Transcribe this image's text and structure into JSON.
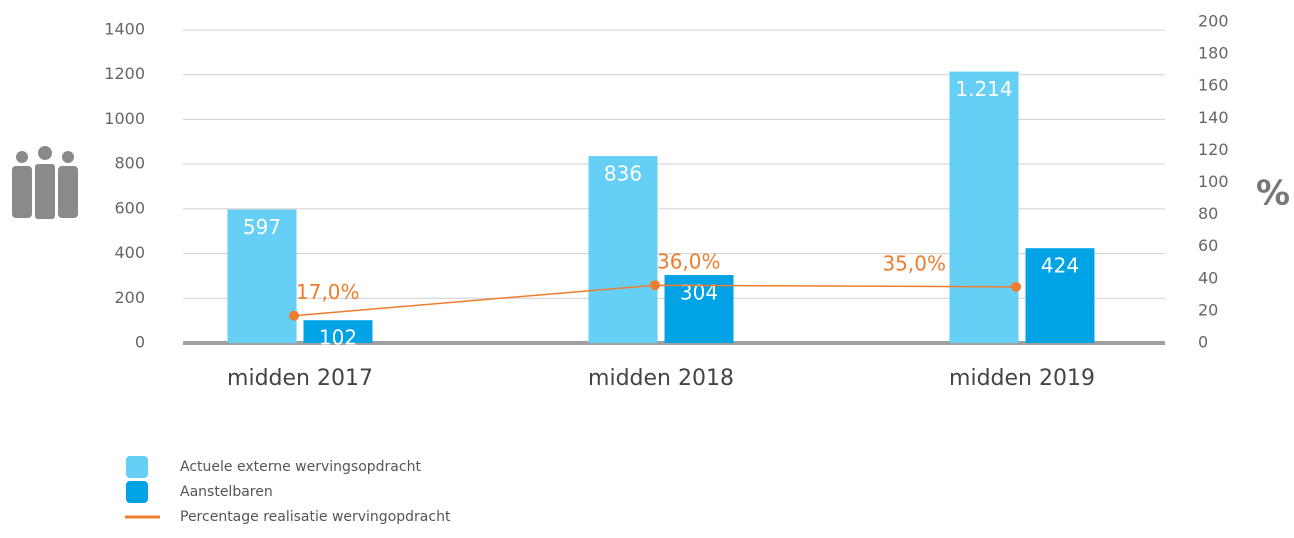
{
  "chart_data": {
    "type": "bar",
    "categories": [
      "midden 2017",
      "midden 2018",
      "midden 2019"
    ],
    "series": [
      {
        "name": "Actuele externe wervingsopdracht",
        "color": "#66cff5",
        "values": [
          597,
          836,
          1214
        ],
        "value_labels": [
          "597",
          "836",
          "1.214"
        ]
      },
      {
        "name": "Aanstelbaren",
        "color": "#00a3e6",
        "values": [
          102,
          304,
          424
        ],
        "value_labels": [
          "102",
          "304",
          "424"
        ]
      },
      {
        "name": "Percentage realisatie wervingopdracht",
        "type": "line",
        "axis": "y2",
        "color": "#ef7d2e",
        "values": [
          17,
          36,
          35
        ],
        "value_labels": [
          "17,0%",
          "36,0%",
          "35,0%"
        ]
      }
    ],
    "ylim": [
      0,
      1400
    ],
    "yticks": [
      0,
      200,
      400,
      600,
      800,
      1000,
      1200,
      1400
    ],
    "y2lim": [
      0,
      200
    ],
    "y2ticks": [
      0,
      20,
      40,
      60,
      80,
      100,
      120,
      140,
      160,
      180,
      200
    ],
    "y2label": "%",
    "grid": true
  }
}
